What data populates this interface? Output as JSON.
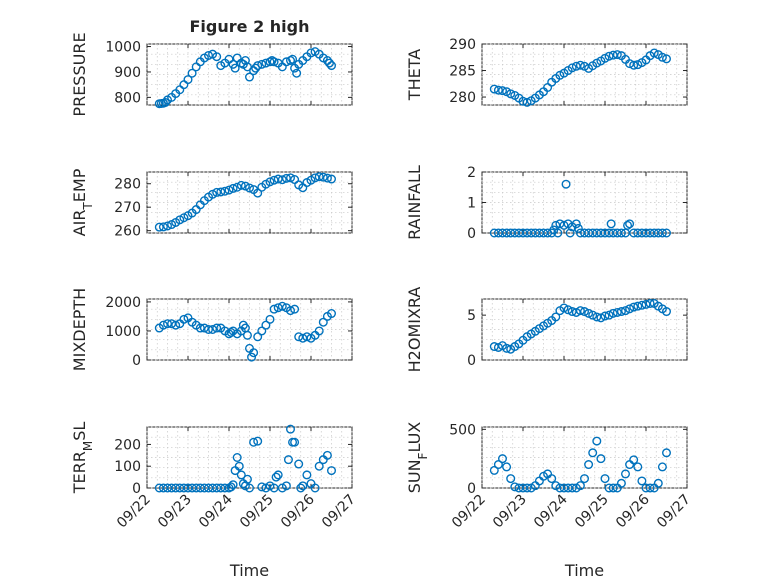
{
  "figure": {
    "title": "Figure 2 high"
  },
  "chart_data": [
    {
      "type": "scatter",
      "position": "top-left",
      "title": "Figure 2 high",
      "ylabel": "PRESSURE",
      "xlabel": "",
      "ylim": [
        770,
        1010
      ],
      "yticks": [
        800,
        900,
        1000
      ],
      "yticklabels": [
        "800",
        "900",
        "1000"
      ],
      "xlim": [
        0,
        5
      ],
      "grid": true,
      "marker": "circle",
      "color": "#0072BD",
      "x": [
        0.3,
        0.35,
        0.4,
        0.45,
        0.5,
        0.6,
        0.7,
        0.8,
        0.9,
        1.0,
        1.1,
        1.2,
        1.3,
        1.4,
        1.5,
        1.6,
        1.7,
        1.8,
        1.9,
        2.0,
        2.1,
        2.15,
        2.2,
        2.3,
        2.35,
        2.4,
        2.45,
        2.5,
        2.6,
        2.65,
        2.7,
        2.8,
        2.9,
        3.0,
        3.05,
        3.1,
        3.2,
        3.3,
        3.4,
        3.5,
        3.55,
        3.6,
        3.65,
        3.7,
        3.8,
        3.9,
        4.0,
        4.1,
        4.2,
        4.3,
        4.4,
        4.45,
        4.5
      ],
      "y": [
        775,
        776,
        777,
        780,
        790,
        800,
        815,
        830,
        850,
        870,
        895,
        920,
        940,
        955,
        965,
        970,
        960,
        925,
        935,
        950,
        930,
        915,
        955,
        935,
        930,
        945,
        920,
        880,
        905,
        915,
        925,
        930,
        935,
        940,
        945,
        940,
        935,
        920,
        940,
        945,
        950,
        915,
        895,
        930,
        945,
        960,
        975,
        980,
        970,
        955,
        945,
        935,
        925
      ]
    },
    {
      "type": "scatter",
      "position": "top-right",
      "title": "",
      "ylabel": "THETA",
      "xlabel": "",
      "ylim": [
        278.5,
        290
      ],
      "yticks": [
        280,
        285,
        290
      ],
      "yticklabels": [
        "280",
        "285",
        "290"
      ],
      "xlim": [
        0,
        5
      ],
      "grid": true,
      "marker": "circle",
      "color": "#0072BD",
      "x": [
        0.3,
        0.4,
        0.5,
        0.6,
        0.7,
        0.8,
        0.9,
        1.0,
        1.1,
        1.2,
        1.3,
        1.4,
        1.5,
        1.6,
        1.7,
        1.8,
        1.9,
        2.0,
        2.1,
        2.2,
        2.3,
        2.4,
        2.5,
        2.6,
        2.7,
        2.8,
        2.9,
        3.0,
        3.1,
        3.2,
        3.3,
        3.4,
        3.5,
        3.6,
        3.7,
        3.8,
        3.9,
        4.0,
        4.1,
        4.2,
        4.3,
        4.4,
        4.5
      ],
      "y": [
        281.5,
        281.3,
        281.2,
        281.0,
        280.6,
        280.3,
        279.8,
        279.2,
        279.0,
        279.3,
        279.8,
        280.4,
        281.0,
        281.8,
        282.8,
        283.5,
        284.1,
        284.5,
        285.0,
        285.5,
        285.8,
        286.0,
        285.8,
        285.4,
        285.9,
        286.4,
        286.8,
        287.3,
        287.7,
        287.9,
        288.0,
        287.8,
        287.1,
        286.3,
        286.0,
        286.1,
        286.5,
        287.0,
        287.8,
        288.3,
        288.0,
        287.5,
        287.2
      ]
    },
    {
      "type": "scatter",
      "position": "middle-left",
      "title": "",
      "ylabel": "AIR_TEMP",
      "xlabel": "",
      "ylim": [
        259,
        285
      ],
      "yticks": [
        260,
        270,
        280
      ],
      "yticklabels": [
        "260",
        "270",
        "280"
      ],
      "xlim": [
        0,
        5
      ],
      "grid": true,
      "marker": "circle",
      "color": "#0072BD",
      "x": [
        0.3,
        0.4,
        0.5,
        0.6,
        0.7,
        0.8,
        0.9,
        1.0,
        1.1,
        1.2,
        1.3,
        1.4,
        1.5,
        1.6,
        1.7,
        1.8,
        1.9,
        2.0,
        2.1,
        2.2,
        2.3,
        2.4,
        2.5,
        2.6,
        2.7,
        2.8,
        2.9,
        3.0,
        3.1,
        3.2,
        3.3,
        3.4,
        3.5,
        3.6,
        3.7,
        3.8,
        3.9,
        4.0,
        4.1,
        4.2,
        4.3,
        4.4,
        4.5
      ],
      "y": [
        261.5,
        261.6,
        262.0,
        262.6,
        263.5,
        264.6,
        265.5,
        266.4,
        267.5,
        269.0,
        271.0,
        272.8,
        274.3,
        275.5,
        276.3,
        276.5,
        276.8,
        277.3,
        278.0,
        278.5,
        279.3,
        279.0,
        278.2,
        277.5,
        276.0,
        278.5,
        279.8,
        280.8,
        281.5,
        282.0,
        281.7,
        282.3,
        282.5,
        281.8,
        279.5,
        278.3,
        280.5,
        281.5,
        282.5,
        283.0,
        282.8,
        282.4,
        282.0
      ]
    },
    {
      "type": "scatter",
      "position": "middle-right",
      "title": "",
      "ylabel": "RAINFALL",
      "xlabel": "",
      "ylim": [
        0,
        2
      ],
      "yticks": [
        0,
        1,
        2
      ],
      "yticklabels": [
        "0",
        "1",
        "2"
      ],
      "xlim": [
        0,
        5
      ],
      "grid": true,
      "marker": "circle",
      "color": "#0072BD",
      "x": [
        0.3,
        0.4,
        0.5,
        0.6,
        0.7,
        0.8,
        0.9,
        1.0,
        1.1,
        1.2,
        1.3,
        1.4,
        1.5,
        1.6,
        1.7,
        1.75,
        1.8,
        1.85,
        1.9,
        2.0,
        2.05,
        2.1,
        2.15,
        2.2,
        2.3,
        2.35,
        2.4,
        2.5,
        2.6,
        2.7,
        2.8,
        2.9,
        3.0,
        3.1,
        3.15,
        3.2,
        3.3,
        3.4,
        3.5,
        3.55,
        3.6,
        3.7,
        3.8,
        3.9,
        4.0,
        4.1,
        4.2,
        4.3,
        4.4,
        4.5
      ],
      "y": [
        0,
        0,
        0,
        0,
        0,
        0,
        0,
        0,
        0,
        0,
        0,
        0,
        0,
        0,
        0,
        0.1,
        0.25,
        0,
        0.3,
        0.25,
        1.6,
        0.3,
        0,
        0.2,
        0.3,
        0.15,
        0,
        0,
        0,
        0,
        0,
        0,
        0,
        0,
        0.3,
        0,
        0,
        0,
        0,
        0.25,
        0.3,
        0,
        0,
        0,
        0,
        0,
        0,
        0,
        0,
        0
      ]
    },
    {
      "type": "scatter",
      "position": "third-left",
      "title": "",
      "ylabel": "MIXDEPTH",
      "xlabel": "",
      "ylim": [
        0,
        2100
      ],
      "yticks": [
        0,
        1000,
        2000
      ],
      "yticklabels": [
        "0",
        "1000",
        "2000"
      ],
      "xlim": [
        0,
        5
      ],
      "grid": true,
      "marker": "circle",
      "color": "#0072BD",
      "x": [
        0.3,
        0.4,
        0.5,
        0.6,
        0.7,
        0.8,
        0.9,
        1.0,
        1.1,
        1.2,
        1.3,
        1.4,
        1.5,
        1.6,
        1.7,
        1.8,
        1.9,
        2.0,
        2.05,
        2.1,
        2.2,
        2.3,
        2.35,
        2.4,
        2.45,
        2.5,
        2.55,
        2.6,
        2.7,
        2.8,
        2.9,
        3.0,
        3.1,
        3.2,
        3.3,
        3.4,
        3.5,
        3.6,
        3.7,
        3.8,
        3.9,
        4.0,
        4.1,
        4.2,
        4.3,
        4.4,
        4.5
      ],
      "y": [
        1100,
        1200,
        1250,
        1250,
        1200,
        1250,
        1400,
        1450,
        1300,
        1200,
        1100,
        1100,
        1050,
        1050,
        1100,
        1100,
        1000,
        900,
        950,
        1000,
        900,
        1000,
        1200,
        1100,
        850,
        400,
        100,
        250,
        800,
        1000,
        1200,
        1400,
        1750,
        1800,
        1850,
        1800,
        1700,
        1750,
        800,
        750,
        800,
        750,
        850,
        1000,
        1300,
        1500,
        1600
      ]
    },
    {
      "type": "scatter",
      "position": "third-right",
      "title": "",
      "ylabel": "H2OMIXRA",
      "xlabel": "",
      "ylim": [
        0,
        6.8
      ],
      "yticks": [
        0,
        5
      ],
      "yticklabels": [
        "0",
        "5"
      ],
      "xlim": [
        0,
        5
      ],
      "grid": true,
      "marker": "circle",
      "color": "#0072BD",
      "x": [
        0.3,
        0.4,
        0.5,
        0.6,
        0.7,
        0.8,
        0.9,
        1.0,
        1.1,
        1.2,
        1.3,
        1.4,
        1.5,
        1.6,
        1.7,
        1.8,
        1.9,
        2.0,
        2.1,
        2.2,
        2.3,
        2.4,
        2.5,
        2.6,
        2.7,
        2.8,
        2.9,
        3.0,
        3.1,
        3.2,
        3.3,
        3.4,
        3.5,
        3.6,
        3.7,
        3.8,
        3.9,
        4.0,
        4.1,
        4.2,
        4.3,
        4.4,
        4.5
      ],
      "y": [
        1.5,
        1.4,
        1.6,
        1.3,
        1.2,
        1.5,
        1.8,
        2.2,
        2.6,
        2.9,
        3.2,
        3.5,
        3.8,
        4.1,
        4.4,
        4.8,
        5.5,
        5.8,
        5.6,
        5.4,
        5.3,
        5.5,
        5.4,
        5.2,
        5.0,
        4.8,
        4.7,
        4.9,
        5.0,
        5.2,
        5.3,
        5.4,
        5.5,
        5.7,
        5.9,
        6.0,
        6.1,
        6.2,
        6.3,
        6.3,
        6.0,
        5.7,
        5.4
      ]
    },
    {
      "type": "scatter",
      "position": "bottom-left",
      "title": "",
      "ylabel": "TERR_MSL",
      "xlabel": "Time",
      "ylim": [
        0,
        280
      ],
      "yticks": [
        0,
        100,
        200
      ],
      "yticklabels": [
        "0",
        "100",
        "200"
      ],
      "xlim": [
        0,
        5
      ],
      "xticks": [
        0,
        1,
        2,
        3,
        4,
        5
      ],
      "xticklabels": [
        "09/22",
        "09/23",
        "09/24",
        "09/25",
        "09/26",
        "09/27"
      ],
      "grid": true,
      "marker": "circle",
      "color": "#0072BD",
      "x": [
        0.3,
        0.4,
        0.5,
        0.6,
        0.7,
        0.8,
        0.9,
        1.0,
        1.1,
        1.2,
        1.3,
        1.4,
        1.5,
        1.6,
        1.7,
        1.8,
        1.9,
        2.0,
        2.05,
        2.1,
        2.15,
        2.2,
        2.25,
        2.3,
        2.35,
        2.4,
        2.45,
        2.5,
        2.6,
        2.7,
        2.8,
        2.9,
        3.0,
        3.1,
        3.15,
        3.2,
        3.3,
        3.4,
        3.45,
        3.5,
        3.55,
        3.6,
        3.7,
        3.75,
        3.8,
        3.9,
        4.0,
        4.1,
        4.2,
        4.3,
        4.4,
        4.5
      ],
      "y": [
        0,
        0,
        0,
        0,
        0,
        0,
        0,
        0,
        0,
        0,
        0,
        0,
        0,
        0,
        0,
        0,
        0,
        0,
        5,
        15,
        80,
        140,
        100,
        60,
        20,
        10,
        40,
        0,
        210,
        215,
        5,
        0,
        10,
        0,
        50,
        60,
        0,
        10,
        130,
        270,
        210,
        210,
        110,
        0,
        10,
        60,
        20,
        0,
        100,
        130,
        150,
        80
      ]
    },
    {
      "type": "scatter",
      "position": "bottom-right",
      "title": "",
      "ylabel": "SUN_FLUX",
      "xlabel": "Time",
      "ylim": [
        0,
        520
      ],
      "yticks": [
        0,
        500
      ],
      "yticklabels": [
        "0",
        "500"
      ],
      "xlim": [
        0,
        5
      ],
      "xticks": [
        0,
        1,
        2,
        3,
        4,
        5
      ],
      "xticklabels": [
        "09/22",
        "09/23",
        "09/24",
        "09/25",
        "09/26",
        "09/27"
      ],
      "grid": true,
      "marker": "circle",
      "color": "#0072BD",
      "x": [
        0.3,
        0.4,
        0.5,
        0.6,
        0.7,
        0.8,
        0.9,
        1.0,
        1.1,
        1.2,
        1.3,
        1.4,
        1.5,
        1.6,
        1.7,
        1.8,
        1.9,
        2.0,
        2.1,
        2.2,
        2.3,
        2.4,
        2.5,
        2.6,
        2.7,
        2.8,
        2.9,
        3.0,
        3.1,
        3.2,
        3.3,
        3.4,
        3.5,
        3.6,
        3.7,
        3.8,
        3.9,
        4.0,
        4.1,
        4.2,
        4.3,
        4.4,
        4.5
      ],
      "y": [
        150,
        200,
        250,
        180,
        80,
        10,
        0,
        0,
        0,
        0,
        20,
        60,
        100,
        120,
        80,
        20,
        0,
        0,
        0,
        0,
        0,
        20,
        80,
        200,
        300,
        400,
        250,
        80,
        0,
        0,
        0,
        40,
        120,
        200,
        240,
        180,
        60,
        0,
        0,
        0,
        40,
        180,
        300
      ]
    }
  ]
}
